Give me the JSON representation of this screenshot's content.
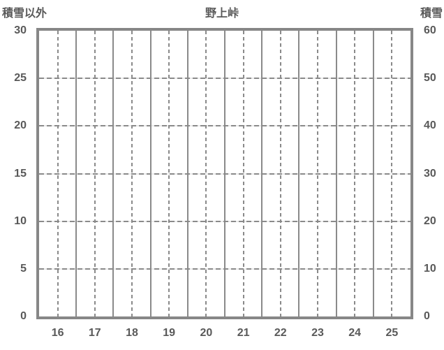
{
  "chart_data": {
    "type": "line",
    "title": "野上峠",
    "series": [],
    "note": "empty chart frame — no data points plotted",
    "x_axis": {
      "tick_labels": [
        "16",
        "17",
        "18",
        "19",
        "20",
        "21",
        "22",
        "23",
        "24",
        "25"
      ]
    },
    "left_axis": {
      "title": "積雪以外",
      "min": 0,
      "max": 30,
      "step": 5,
      "tick_labels": [
        "30",
        "25",
        "20",
        "15",
        "10",
        "5",
        "0"
      ]
    },
    "right_axis": {
      "title": "積雪",
      "min": 0,
      "max": 60,
      "step": 10,
      "tick_labels": [
        "60",
        "50",
        "40",
        "30",
        "20",
        "10",
        "0"
      ]
    },
    "grid": {
      "horizontal": "dashed",
      "vertical_major": "solid",
      "vertical_minor": "dashed",
      "legend": "none"
    },
    "colors": {
      "background": "#ffffff",
      "plot_border": "#878787",
      "gridline": "#8a8a8a",
      "text": "#595959"
    }
  }
}
